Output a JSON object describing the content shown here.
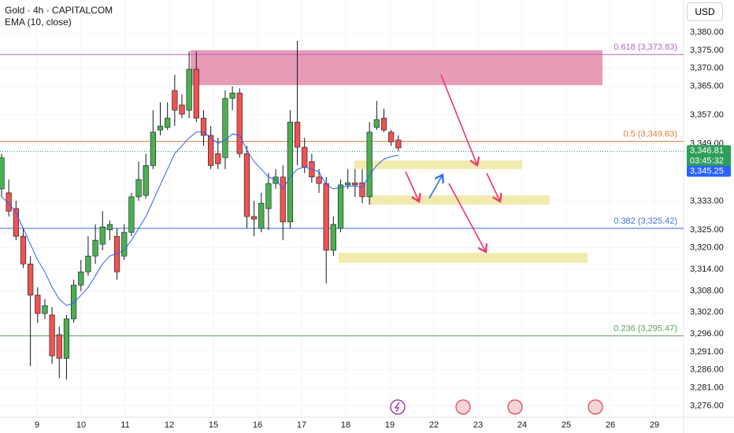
{
  "header": {
    "title": "Gold · 4h · CAPITALCOM",
    "indicator": "EMA (10, close)",
    "currency": "USD"
  },
  "chart_data": {
    "type": "candlestick",
    "up_color": "#4caf50",
    "down_color": "#ef5350",
    "grid": true,
    "open": [
      3336.4,
      3335.3,
      3330.9,
      3323.2,
      3315.5,
      3306.8,
      3301.7,
      3301.3,
      3295.8,
      3289.2,
      3300.2,
      3309.6,
      3313.3,
      3317.7,
      3321.0,
      3325.0,
      3323.2,
      3317.7,
      3324.3,
      3334.2,
      3334.6,
      3342.9,
      3352.8,
      3353.5,
      3363.8,
      3359.8,
      3358.3,
      3369.7,
      3356.1,
      3351.3,
      3346.2,
      3345.1,
      3361.6,
      3363.1,
      3346.2,
      3328.7,
      3325.4,
      3330.9,
      3337.9,
      3339.7,
      3327.2,
      3355.0,
      3348.0,
      3344.0,
      3339.7,
      3337.9,
      3319.3,
      3325.4,
      3337.5,
      3338.1,
      3338.1,
      3334.2,
      3353.5,
      3356.1,
      3352.2,
      3350.0
    ],
    "high": [
      3346.2,
      3339.0,
      3333.1,
      3325.4,
      3317.7,
      3309.0,
      3305.7,
      3303.5,
      3298.0,
      3301.3,
      3311.1,
      3316.6,
      3323.2,
      3326.5,
      3330.2,
      3327.6,
      3325.4,
      3326.5,
      3335.3,
      3344.0,
      3346.2,
      3358.3,
      3360.5,
      3360.5,
      3368.2,
      3362.7,
      3374.7,
      3374.7,
      3358.3,
      3353.9,
      3350.6,
      3363.8,
      3364.9,
      3364.4,
      3348.4,
      3333.1,
      3335.3,
      3340.8,
      3341.9,
      3343.0,
      3358.3,
      3377.6,
      3350.6,
      3346.2,
      3341.9,
      3339.7,
      3328.7,
      3339.0,
      3341.9,
      3341.9,
      3341.9,
      3355.0,
      3360.9,
      3358.7,
      3352.8,
      3351.3
    ],
    "low": [
      3334.2,
      3328.7,
      3322.1,
      3314.4,
      3287.0,
      3299.1,
      3300.2,
      3287.7,
      3283.7,
      3283.3,
      3299.1,
      3307.9,
      3312.2,
      3315.5,
      3319.3,
      3322.1,
      3311.1,
      3316.6,
      3323.2,
      3333.1,
      3333.7,
      3341.9,
      3351.3,
      3352.8,
      3353.9,
      3356.1,
      3356.1,
      3355.0,
      3348.4,
      3341.9,
      3341.9,
      3341.9,
      3358.3,
      3345.1,
      3325.4,
      3323.2,
      3324.3,
      3325.0,
      3336.4,
      3322.1,
      3325.4,
      3343.0,
      3340.8,
      3338.1,
      3335.3,
      3310.1,
      3317.7,
      3324.3,
      3336.4,
      3334.2,
      3332.4,
      3332.0,
      3352.8,
      3352.2,
      3348.4,
      3346.9
    ],
    "close": [
      3345.1,
      3330.2,
      3323.2,
      3315.5,
      3306.8,
      3301.7,
      3303.9,
      3289.9,
      3289.2,
      3300.2,
      3309.6,
      3313.3,
      3317.7,
      3322.1,
      3325.8,
      3326.5,
      3313.3,
      3324.3,
      3334.2,
      3339.0,
      3342.9,
      3352.2,
      3353.9,
      3356.1,
      3358.3,
      3357.2,
      3369.7,
      3356.1,
      3351.3,
      3342.9,
      3343.4,
      3361.6,
      3363.1,
      3346.2,
      3328.7,
      3328.0,
      3332.4,
      3337.9,
      3339.7,
      3327.2,
      3355.0,
      3348.0,
      3342.5,
      3339.7,
      3337.9,
      3319.3,
      3326.5,
      3337.5,
      3338.1,
      3337.5,
      3334.2,
      3352.2,
      3355.7,
      3352.8,
      3349.5,
      3347.8
    ],
    "ema": {
      "color": "#2962ff",
      "values": [
        3334.2,
        3332.4,
        3329.8,
        3325.4,
        3321.0,
        3316.6,
        3313.3,
        3309.0,
        3305.7,
        3303.9,
        3304.6,
        3306.8,
        3309.0,
        3312.2,
        3315.5,
        3317.7,
        3318.4,
        3319.3,
        3322.1,
        3325.4,
        3328.7,
        3333.1,
        3337.5,
        3341.9,
        3346.2,
        3348.4,
        3350.6,
        3352.2,
        3352.2,
        3350.6,
        3349.1,
        3350.0,
        3351.7,
        3351.3,
        3347.3,
        3344.0,
        3341.9,
        3339.7,
        3339.0,
        3336.4,
        3339.7,
        3341.9,
        3342.5,
        3341.9,
        3341.2,
        3337.5,
        3336.4,
        3336.8,
        3337.2,
        3337.2,
        3336.8,
        3340.3,
        3342.9,
        3344.7,
        3345.4,
        3345.8
      ]
    },
    "ylim": [
      3272.8,
      3389.0
    ],
    "yticks": [
      {
        "value": 3380,
        "label": "3,380.00"
      },
      {
        "value": 3375,
        "label": "3,375.00"
      },
      {
        "value": 3370,
        "label": "3,370.00"
      },
      {
        "value": 3365,
        "label": "3,365.00"
      },
      {
        "value": 3357,
        "label": "3,357.00"
      },
      {
        "value": 3349,
        "label": "3,349.00"
      },
      {
        "value": 3333,
        "label": "3,333.00"
      },
      {
        "value": 3325,
        "label": "3,325.00"
      },
      {
        "value": 3320,
        "label": "3,320.00"
      },
      {
        "value": 3314,
        "label": "3,314.00"
      },
      {
        "value": 3308,
        "label": "3,308.00"
      },
      {
        "value": 3302,
        "label": "3,302.00"
      },
      {
        "value": 3296,
        "label": "3,296.00"
      },
      {
        "value": 3291,
        "label": "3,291.00"
      },
      {
        "value": 3286,
        "label": "3,286.00"
      },
      {
        "value": 3281,
        "label": "3,281.00"
      },
      {
        "value": 3276,
        "label": "3,276.00"
      }
    ],
    "xticks": [
      9,
      10,
      11,
      12,
      15,
      16,
      17,
      18,
      19,
      22,
      23,
      24,
      25,
      26,
      29
    ],
    "levels": [
      {
        "value": 3373.83,
        "label": "0.618 (3,373.83)",
        "color": "#b364c8"
      },
      {
        "value": 3349.63,
        "label": "0.5 (3,349.63)",
        "color": "#e57c35"
      },
      {
        "value": 3325.42,
        "label": "0.382 (3,325.42)",
        "color": "#3d6fe0"
      },
      {
        "value": 3295.47,
        "label": "0.236 (3,295.47)",
        "color": "#5a9e5e"
      }
    ],
    "zones": [
      {
        "ylim": [
          3365.3,
          3375.0
        ],
        "color": "rgba(214,72,122,0.55)"
      },
      {
        "ylim": [
          3341.9,
          3344.3
        ],
        "color": "rgba(238,228,150,0.75)"
      },
      {
        "ylim": [
          3332.0,
          3334.6
        ],
        "color": "rgba(238,228,150,0.75)"
      },
      {
        "ylim": [
          3315.8,
          3318.6
        ],
        "color": "rgba(238,228,150,0.75)"
      }
    ],
    "last_price": {
      "value": 3346.81,
      "label": "3,346.81",
      "countdown": "03:45:32",
      "color": "#2e9e5b"
    },
    "ema_last": {
      "value": 3345.25,
      "label": "3,345.25"
    }
  }
}
